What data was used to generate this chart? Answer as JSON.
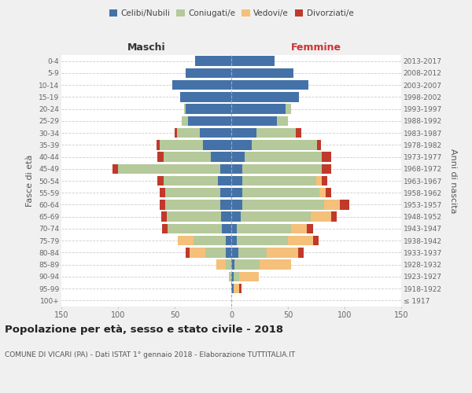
{
  "age_groups": [
    "100+",
    "95-99",
    "90-94",
    "85-89",
    "80-84",
    "75-79",
    "70-74",
    "65-69",
    "60-64",
    "55-59",
    "50-54",
    "45-49",
    "40-44",
    "35-39",
    "30-34",
    "25-29",
    "20-24",
    "15-19",
    "10-14",
    "5-9",
    "0-4"
  ],
  "birth_years": [
    "≤ 1917",
    "1918-1922",
    "1923-1927",
    "1928-1932",
    "1933-1937",
    "1938-1942",
    "1943-1947",
    "1948-1952",
    "1953-1957",
    "1958-1962",
    "1963-1967",
    "1968-1972",
    "1973-1977",
    "1978-1982",
    "1983-1987",
    "1988-1992",
    "1993-1997",
    "1998-2002",
    "2003-2007",
    "2008-2012",
    "2013-2017"
  ],
  "colors": {
    "celibi": "#4472a8",
    "coniugati": "#b5c99a",
    "vedovi": "#f5c07a",
    "divorziati": "#c0392b"
  },
  "maschi": {
    "celibi": [
      0,
      0,
      0,
      0,
      5,
      5,
      8,
      9,
      10,
      10,
      12,
      10,
      18,
      25,
      28,
      38,
      40,
      45,
      52,
      40,
      32
    ],
    "coniugati": [
      0,
      0,
      2,
      5,
      18,
      28,
      48,
      48,
      48,
      48,
      48,
      90,
      42,
      38,
      20,
      6,
      2,
      0,
      0,
      0,
      0
    ],
    "vedovi": [
      0,
      0,
      0,
      8,
      14,
      14,
      0,
      0,
      0,
      0,
      0,
      0,
      0,
      0,
      0,
      0,
      0,
      0,
      0,
      0,
      0
    ],
    "divorziati": [
      0,
      0,
      0,
      0,
      3,
      0,
      5,
      5,
      5,
      5,
      5,
      5,
      5,
      3,
      2,
      0,
      0,
      0,
      0,
      0,
      0
    ]
  },
  "femmine": {
    "celibi": [
      0,
      2,
      2,
      3,
      6,
      5,
      5,
      8,
      10,
      10,
      10,
      10,
      12,
      18,
      22,
      40,
      48,
      60,
      68,
      55,
      38
    ],
    "coniugati": [
      0,
      0,
      5,
      22,
      25,
      45,
      48,
      62,
      72,
      68,
      65,
      70,
      68,
      58,
      35,
      10,
      5,
      0,
      0,
      0,
      0
    ],
    "vedovi": [
      0,
      5,
      17,
      28,
      28,
      22,
      14,
      18,
      14,
      5,
      5,
      0,
      0,
      0,
      0,
      0,
      0,
      0,
      0,
      0,
      0
    ],
    "divorziati": [
      0,
      2,
      0,
      0,
      5,
      5,
      5,
      5,
      8,
      5,
      5,
      8,
      8,
      3,
      5,
      0,
      0,
      0,
      0,
      0,
      0
    ]
  },
  "xlim": 150,
  "title": "Popolazione per età, sesso e stato civile - 2018",
  "subtitle": "COMUNE DI VICARI (PA) - Dati ISTAT 1° gennaio 2018 - Elaborazione TUTTITALIA.IT",
  "ylabel_left": "Fasce di età",
  "ylabel_right": "Anni di nascita",
  "header_left": "Maschi",
  "header_right": "Femmine",
  "legend_labels": [
    "Celibi/Nubili",
    "Coniugati/e",
    "Vedovi/e",
    "Divorziati/e"
  ],
  "bg_color": "#f0f0f0",
  "plot_bg": "#ffffff"
}
